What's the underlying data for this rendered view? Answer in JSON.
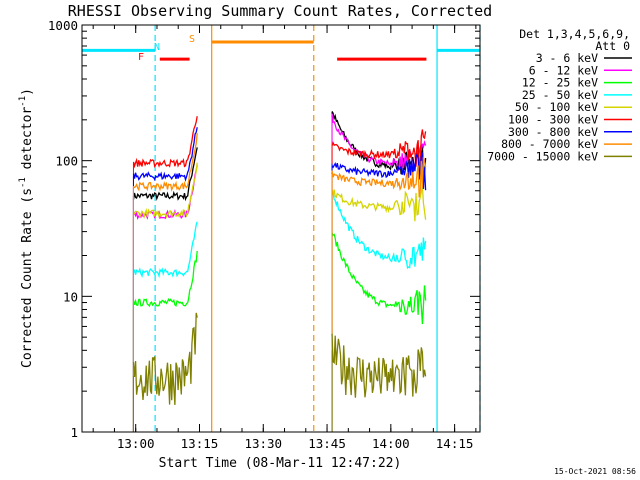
{
  "chart_data": {
    "type": "line",
    "title": "RHESSI Observing Summary Count Rates, Corrected",
    "xlabel": "Start Time (08-Mar-11 12:47:22)",
    "ylabel_main": "Corrected Count Rate (s",
    "ylabel_sup1": "-1",
    "ylabel_mid": " detector",
    "ylabel_sup2": "-1",
    "ylabel_end": ")",
    "x_unit": "minutes after 12:47:22",
    "xlim": [
      0,
      39.6
    ],
    "ylim": [
      1,
      1000
    ],
    "yscale": "log",
    "xticks": [
      {
        "label": "13:00",
        "value": 12.63
      },
      {
        "label": "13:15",
        "value": 27.63
      },
      {
        "label": "13:30",
        "value": 42.63
      },
      {
        "label": "13:45",
        "value": 57.63
      },
      {
        "label": "14:00",
        "value": 72.63
      },
      {
        "label": "14:15",
        "value": 87.63
      }
    ],
    "yticks": [
      {
        "label": "1",
        "value": 1
      },
      {
        "label": "10",
        "value": 10
      },
      {
        "label": "100",
        "value": 100
      },
      {
        "label": "1000",
        "value": 1000
      }
    ],
    "legend_header": [
      "Det 1,3,4,5,6,9,",
      "Att 0"
    ],
    "legend_position": "right",
    "series": [
      {
        "name": "3 - 6 keV",
        "color": "#000000",
        "pre_level": 55,
        "post_level": 88,
        "post_peak": 230
      },
      {
        "name": "6 - 12 keV",
        "color": "#ff00ff",
        "pre_level": 40,
        "post_level": 92,
        "post_peak": 210
      },
      {
        "name": "12 - 25 keV",
        "color": "#00ff00",
        "pre_level": 9,
        "post_level": 8,
        "post_peak": 30
      },
      {
        "name": "25 - 50 keV",
        "color": "#00ffff",
        "pre_level": 15,
        "post_level": 18,
        "post_peak": 60
      },
      {
        "name": "50 - 100 keV",
        "color": "#d4d400",
        "pre_level": 41,
        "post_level": 45,
        "post_peak": 60
      },
      {
        "name": "100 - 300 keV",
        "color": "#ff0000",
        "pre_level": 96,
        "post_level": 110,
        "post_peak": 130
      },
      {
        "name": "300 - 800 keV",
        "color": "#0000ff",
        "pre_level": 77,
        "post_level": 80,
        "post_peak": 95
      },
      {
        "name": "800 - 7000 keV",
        "color": "#ff8c00",
        "pre_level": 65,
        "post_level": 68,
        "post_peak": 80
      },
      {
        "name": "7000 - 15000 keV",
        "color": "#808000",
        "pre_level": 2.6,
        "post_level": 2.5,
        "post_peak": 4
      }
    ],
    "data_windows": [
      {
        "start_time": "13:00",
        "end_time": "13:15",
        "start": 12.1,
        "end": 27.3
      },
      {
        "start_time": "13:46",
        "end_time": "14:08",
        "start": 58.8,
        "end": 81.0
      }
    ],
    "flags": [
      {
        "label": "N",
        "type": "night",
        "color": "#00e5ff"
      },
      {
        "label": "F",
        "type": "flare",
        "color": "#ff0000"
      },
      {
        "label": "S",
        "type": "saa",
        "color": "#ff8c00"
      }
    ],
    "flag_bars": [
      {
        "type": "night",
        "color": "#00e5ff",
        "x0": 0.0,
        "x1": 17.2,
        "y": 650
      },
      {
        "type": "night",
        "color": "#00e5ff",
        "x0": 83.5,
        "x1": 93.6,
        "y": 650
      },
      {
        "type": "flare",
        "color": "#ff0000",
        "x0": 18.3,
        "x1": 25.3,
        "y": 560
      },
      {
        "type": "flare",
        "color": "#ff0000",
        "x0": 60.0,
        "x1": 81.0,
        "y": 560
      },
      {
        "type": "saa",
        "color": "#ff8c00",
        "x0": 30.5,
        "x1": 54.5,
        "y": 750
      }
    ],
    "vlines": [
      {
        "color": "#00e5ff",
        "x": 17.2,
        "dashed": true
      },
      {
        "color": "#ff8c00",
        "x": 30.5,
        "dashed": false
      },
      {
        "color": "#ff8c00",
        "x": 54.5,
        "dashed": true
      },
      {
        "color": "#00e5ff",
        "x": 83.5,
        "dashed": false
      },
      {
        "color": "#00e5ff",
        "x": 93.6,
        "dashed": true
      }
    ],
    "axis_color": "#000000",
    "grid": false
  },
  "timestamp": "15-Oct-2021 08:56"
}
